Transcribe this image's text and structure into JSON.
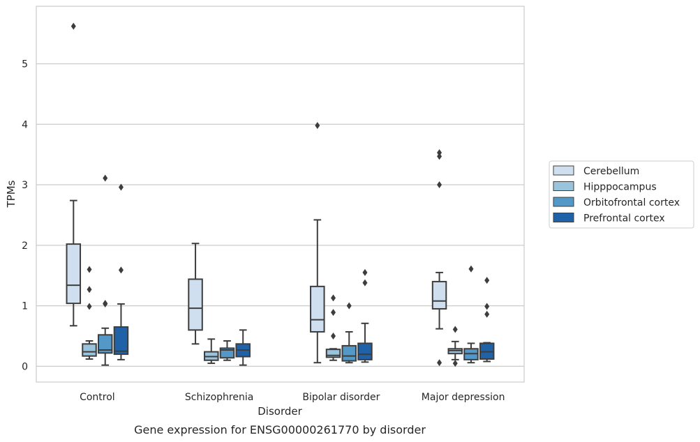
{
  "chart_data": {
    "type": "box",
    "title": "",
    "caption": "Gene expression for ENSG00000261770 by disorder",
    "xlabel": "Disorder",
    "ylabel": "TPMs",
    "ylim": [
      -0.26,
      5.95
    ],
    "yticks": [
      0,
      1,
      2,
      3,
      4,
      5
    ],
    "grid": "horizontal",
    "legend_position": "right",
    "categories": [
      "Control",
      "Schizophrenia",
      "Bipolar disorder",
      "Major depression"
    ],
    "series": [
      {
        "name": "Cerebellum",
        "color": "#cfdff0",
        "boxes": [
          {
            "whislo": 0.67,
            "q1": 1.04,
            "med": 1.34,
            "q3": 2.02,
            "whishi": 2.74,
            "fliers": [
              5.62
            ]
          },
          {
            "whislo": 0.37,
            "q1": 0.6,
            "med": 0.96,
            "q3": 1.44,
            "whishi": 2.03,
            "fliers": []
          },
          {
            "whislo": 0.06,
            "q1": 0.57,
            "med": 0.77,
            "q3": 1.32,
            "whishi": 2.42,
            "fliers": [
              3.98
            ]
          },
          {
            "whislo": 0.62,
            "q1": 0.95,
            "med": 1.08,
            "q3": 1.4,
            "whishi": 1.55,
            "fliers": [
              3.53,
              3.47,
              3.0,
              0.06
            ]
          }
        ]
      },
      {
        "name": "Hipppocampus",
        "color": "#9ac3dc",
        "boxes": [
          {
            "whislo": 0.12,
            "q1": 0.17,
            "med": 0.24,
            "q3": 0.37,
            "whishi": 0.42,
            "fliers": [
              1.6,
              1.27,
              0.99
            ]
          },
          {
            "whislo": 0.05,
            "q1": 0.1,
            "med": 0.16,
            "q3": 0.24,
            "whishi": 0.45,
            "fliers": []
          },
          {
            "whislo": 0.1,
            "q1": 0.15,
            "med": 0.18,
            "q3": 0.28,
            "whishi": 0.29,
            "fliers": [
              1.13,
              0.89,
              0.5
            ]
          },
          {
            "whislo": 0.11,
            "q1": 0.21,
            "med": 0.26,
            "q3": 0.29,
            "whishi": 0.41,
            "fliers": [
              0.61,
              0.05
            ]
          }
        ]
      },
      {
        "name": "Orbitofrontal cortex",
        "color": "#5498c7",
        "boxes": [
          {
            "whislo": 0.02,
            "q1": 0.22,
            "med": 0.27,
            "q3": 0.52,
            "whishi": 0.63,
            "fliers": [
              3.11,
              1.03,
              1.04
            ]
          },
          {
            "whislo": 0.1,
            "q1": 0.14,
            "med": 0.27,
            "q3": 0.3,
            "whishi": 0.42,
            "fliers": []
          },
          {
            "whislo": 0.06,
            "q1": 0.09,
            "med": 0.17,
            "q3": 0.34,
            "whishi": 0.57,
            "fliers": [
              1.0
            ]
          },
          {
            "whislo": 0.06,
            "q1": 0.11,
            "med": 0.21,
            "q3": 0.29,
            "whishi": 0.38,
            "fliers": [
              1.61
            ]
          }
        ]
      },
      {
        "name": "Prefrontal cortex",
        "color": "#1f62a7",
        "boxes": [
          {
            "whislo": 0.11,
            "q1": 0.2,
            "med": 0.25,
            "q3": 0.65,
            "whishi": 1.03,
            "fliers": [
              2.96,
              1.59
            ]
          },
          {
            "whislo": 0.02,
            "q1": 0.16,
            "med": 0.27,
            "q3": 0.37,
            "whishi": 0.6,
            "fliers": []
          },
          {
            "whislo": 0.07,
            "q1": 0.11,
            "med": 0.2,
            "q3": 0.38,
            "whishi": 0.71,
            "fliers": [
              1.55,
              1.38
            ]
          },
          {
            "whislo": 0.08,
            "q1": 0.12,
            "med": 0.24,
            "q3": 0.38,
            "whishi": 0.39,
            "fliers": [
              1.42,
              0.99,
              0.86
            ]
          }
        ]
      }
    ]
  },
  "colors": {
    "box_edge": "#3d3d3d",
    "grid": "#cccccc",
    "frame": "#cccccc",
    "text": "#262626"
  }
}
